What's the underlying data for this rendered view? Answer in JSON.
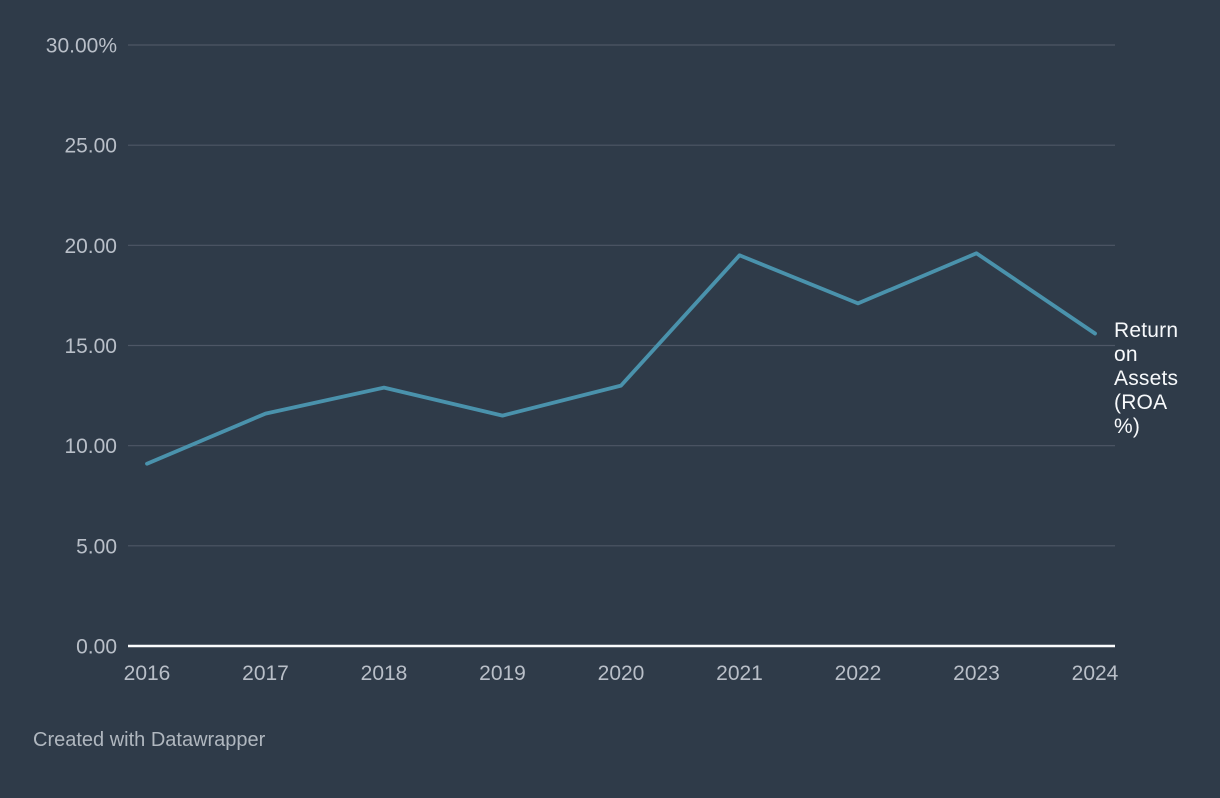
{
  "chart_data": {
    "type": "line",
    "categories": [
      "2016",
      "2017",
      "2018",
      "2019",
      "2020",
      "2021",
      "2022",
      "2023",
      "2024"
    ],
    "series": [
      {
        "name": "Return on Assets (ROA %)",
        "values": [
          9.1,
          11.6,
          12.9,
          11.5,
          13.0,
          19.5,
          17.1,
          19.6,
          15.6
        ]
      }
    ],
    "title": "",
    "xlabel": "",
    "ylabel": "",
    "ylim": [
      0,
      30
    ],
    "grid": true,
    "legend_position": "right-of-line-end",
    "y_ticks": [
      {
        "value": 0,
        "label": "0.00"
      },
      {
        "value": 5,
        "label": "5.00"
      },
      {
        "value": 10,
        "label": "10.00"
      },
      {
        "value": 15,
        "label": "15.00"
      },
      {
        "value": 20,
        "label": "20.00"
      },
      {
        "value": 25,
        "label": "25.00"
      },
      {
        "value": 30,
        "label": "30.00%"
      }
    ],
    "line_color": "#4A92AC"
  },
  "footer": {
    "attribution": "Created with Datawrapper"
  },
  "colors": {
    "background": "#2F3B49",
    "line": "#4A92AC",
    "gridline": "#4E5766",
    "baseline": "#FBFCFD",
    "tick_label": "#B9BFC8",
    "series_label": "#F7F9FB",
    "attribution": "#B0B7BF"
  }
}
